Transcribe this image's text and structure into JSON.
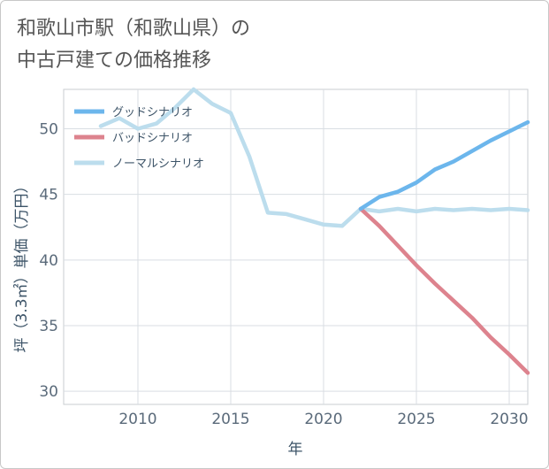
{
  "header": {
    "title_line1": "和歌山市駅（和歌山県）の",
    "title_line2": "中古戸建ての価格推移"
  },
  "chart_data": {
    "type": "line",
    "title": "和歌山市駅（和歌山県）の中古戸建ての価格推移",
    "xlabel": "年",
    "ylabel": "坪（3.3㎡）単価（万円）",
    "xlim": [
      2006,
      2031
    ],
    "ylim": [
      29,
      53
    ],
    "xticks": [
      2010,
      2015,
      2020,
      2025,
      2030
    ],
    "yticks": [
      30,
      35,
      40,
      45,
      50
    ],
    "grid": true,
    "legend_position": "top-left",
    "series": [
      {
        "name": "グッドシナリオ",
        "color": "#6cb6ec",
        "x": [
          2022,
          2023,
          2024,
          2025,
          2026,
          2027,
          2028,
          2029,
          2030,
          2031
        ],
        "y": [
          43.9,
          44.8,
          45.2,
          45.9,
          46.9,
          47.5,
          48.3,
          49.1,
          49.8,
          50.5
        ]
      },
      {
        "name": "バッドシナリオ",
        "color": "#dd838e",
        "x": [
          2022,
          2023,
          2024,
          2025,
          2026,
          2027,
          2028,
          2029,
          2030,
          2031
        ],
        "y": [
          43.9,
          42.6,
          41.1,
          39.6,
          38.2,
          36.9,
          35.6,
          34.1,
          32.8,
          31.4
        ]
      },
      {
        "name": "ノーマルシナリオ",
        "color": "#bcdded",
        "x": [
          2008,
          2009,
          2010,
          2011,
          2012,
          2013,
          2014,
          2015,
          2016,
          2017,
          2018,
          2019,
          2020,
          2021,
          2022,
          2023,
          2024,
          2025,
          2026,
          2027,
          2028,
          2029,
          2030,
          2031
        ],
        "y": [
          50.2,
          50.8,
          50.0,
          50.4,
          51.6,
          53.0,
          51.9,
          51.2,
          47.9,
          43.6,
          43.5,
          43.1,
          42.7,
          42.6,
          43.9,
          43.7,
          43.9,
          43.7,
          43.9,
          43.8,
          43.9,
          43.8,
          43.9,
          43.8
        ]
      }
    ]
  }
}
